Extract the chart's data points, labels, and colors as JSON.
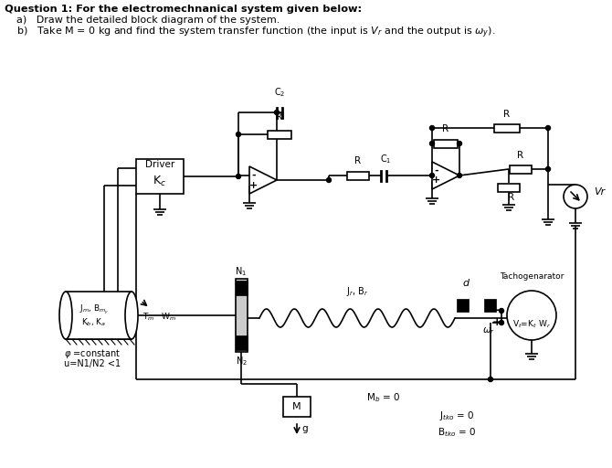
{
  "bg_color": "#ffffff",
  "text_color": "#000000",
  "lw": 1.2,
  "header": {
    "line1": "Question 1: For the electromechnanical system given below:",
    "line2a": "a)   Draw the detailed block diagram of the system.",
    "line2b": "b)   Take M = 0 kg and find the system transfer function (the input is $V_r$ and the output is $\\omega_y$)."
  },
  "labels": {
    "driver_title": "Driver",
    "driver_gain": "K$_c$",
    "c2": "C$_2$",
    "r_labels": [
      "R",
      "R",
      "R",
      "R",
      "R",
      "R"
    ],
    "c1": "C$_1$",
    "vr": "Vr",
    "n1": "N$_1$",
    "n2": "N$_2$",
    "motor_params": "J$_m$, B$_{m_y}$",
    "motor_params2": "K$_b$, K$_a$",
    "shaft_label": "T$_m$   W$_m$",
    "coil_label": "J$_r$, B$_r$",
    "omega": "$\\omega_r$",
    "tach_title": "Tachogenarator",
    "tach_eq": "V$_t$=K$_t$ W$_r$",
    "d_label": "d",
    "phi": "$\\varphi$ =constant",
    "u": "u=N1/N2 <1",
    "mb": "M$_b$ = 0",
    "jtako": "J$_{tko}$ = 0",
    "btako": "B$_{tko}$ = 0",
    "m_label": "M",
    "g_label": "g"
  }
}
